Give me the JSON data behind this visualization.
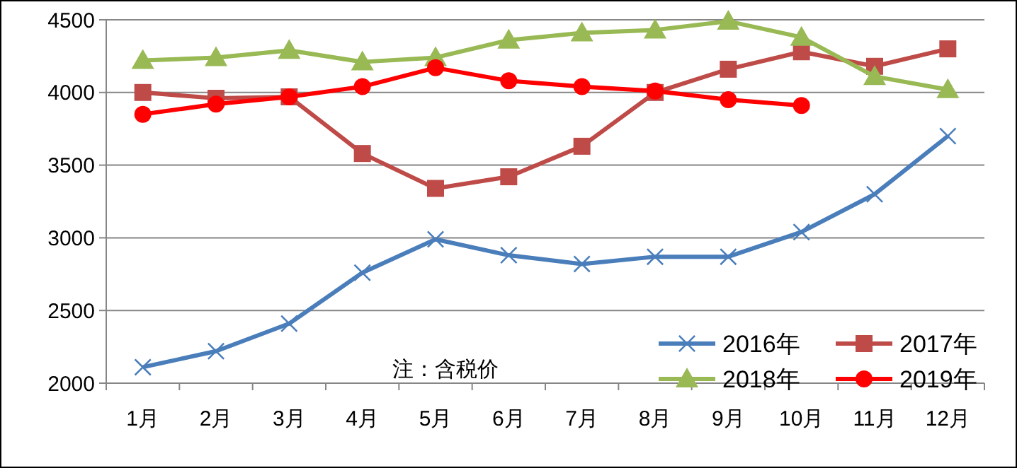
{
  "chart_data": {
    "type": "line",
    "categories": [
      "1月",
      "2月",
      "3月",
      "4月",
      "5月",
      "6月",
      "7月",
      "8月",
      "9月",
      "10月",
      "11月",
      "12月"
    ],
    "ylim": [
      2000,
      4500
    ],
    "yticks": [
      2000,
      2500,
      3000,
      3500,
      4000,
      4500
    ],
    "grid": "y",
    "legend": "bottom right",
    "annotations": [
      "注：含税价"
    ],
    "series": [
      {
        "name": "2016年",
        "color": "#4a7ebb",
        "marker": "cross",
        "values": [
          2110,
          2220,
          2410,
          2760,
          2990,
          2880,
          2820,
          2870,
          2870,
          3040,
          3300,
          3700
        ]
      },
      {
        "name": "2017年",
        "color": "#be4b48",
        "marker": "square",
        "values": [
          4000,
          3960,
          3970,
          3580,
          3340,
          3420,
          3630,
          4000,
          4160,
          4280,
          4180,
          4300
        ]
      },
      {
        "name": "2018年",
        "color": "#98b954",
        "marker": "triangle",
        "values": [
          4220,
          4240,
          4290,
          4210,
          4240,
          4360,
          4410,
          4430,
          4490,
          4380,
          4110,
          4020
        ]
      },
      {
        "name": "2019年",
        "color": "#ff0000",
        "marker": "circle",
        "values": [
          3850,
          3920,
          3970,
          4040,
          4170,
          4080,
          4040,
          4010,
          3950,
          3910,
          null,
          null
        ]
      }
    ]
  }
}
